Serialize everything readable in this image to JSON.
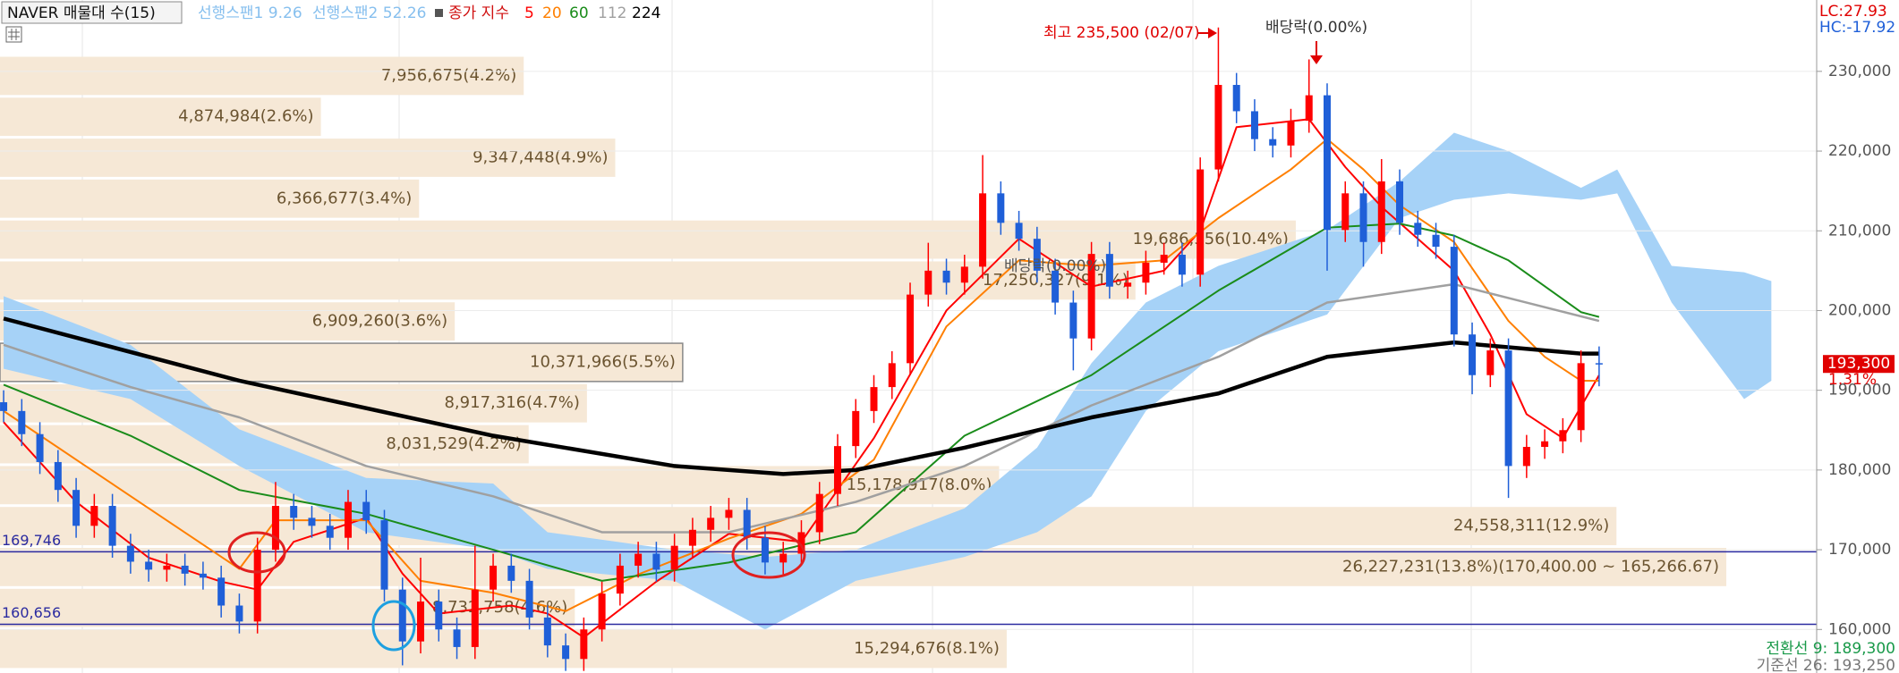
{
  "chart_data": {
    "type": "candlestick",
    "title": "NAVER 매물대 수(15)",
    "span1_label": "선행스팬1 9.26",
    "span2_label": "선행스팬2 52.26",
    "ma_label": "종가 지수",
    "xlim": [
      -0.2,
      100
    ],
    "ylim": [
      154540,
      238950
    ],
    "yticks": [
      {
        "value": 160000,
        "label": "160,000"
      },
      {
        "value": 170000,
        "label": "170,000"
      },
      {
        "value": 180000,
        "label": "180,000"
      },
      {
        "value": 190000,
        "label": "190,000"
      },
      {
        "value": 200000,
        "label": "200,000"
      },
      {
        "value": 210000,
        "label": "210,000"
      },
      {
        "value": 220000,
        "label": "220,000"
      },
      {
        "value": 230000,
        "label": "230,000"
      }
    ],
    "grid": true,
    "up_color": "#ff0000",
    "down_color": "#1f5fd8",
    "open": [
      188500,
      187400,
      184500,
      181000,
      177500,
      173000,
      175500,
      170500,
      168500,
      167500,
      168000,
      167000,
      166500,
      163000,
      161000,
      170000,
      175500,
      174000,
      173000,
      171500,
      176000,
      173700,
      165000,
      158500,
      163500,
      160000,
      157800,
      165000,
      168000,
      166100,
      161500,
      158000,
      156300,
      160000,
      164500,
      168000,
      169500,
      167500,
      170500,
      172500,
      174000,
      175000,
      171500,
      168400,
      169500,
      172200,
      177000,
      183000,
      187400,
      190400,
      193400,
      202000,
      205000,
      203500,
      205500,
      214700,
      211000,
      209000,
      205000,
      201000,
      196500,
      207100,
      203000,
      203500,
      206000,
      207000,
      204500,
      217700,
      228300,
      225000,
      221500,
      220700,
      223800,
      227000,
      210100,
      214700,
      208600,
      216200,
      211000,
      209500,
      208000,
      197000,
      191900,
      195000,
      180500,
      182900,
      183600,
      185000,
      193400
    ],
    "close": [
      187400,
      184500,
      181000,
      177500,
      173000,
      175500,
      170500,
      168500,
      167500,
      168000,
      167000,
      166500,
      163000,
      161000,
      170000,
      175500,
      174000,
      173000,
      171500,
      176000,
      173700,
      165000,
      158500,
      163500,
      160000,
      157800,
      165000,
      168000,
      166100,
      161500,
      158000,
      156300,
      160000,
      164500,
      168000,
      169500,
      167500,
      170500,
      172500,
      174000,
      175000,
      171500,
      168400,
      169500,
      172200,
      177000,
      183000,
      187400,
      190400,
      193400,
      202000,
      205000,
      203500,
      205500,
      214700,
      211000,
      209000,
      205000,
      201000,
      196500,
      207100,
      203000,
      203500,
      206000,
      207000,
      204500,
      217700,
      228300,
      225000,
      221500,
      220700,
      223800,
      227000,
      210100,
      214700,
      208600,
      216200,
      211000,
      209500,
      208000,
      197000,
      191900,
      195000,
      180500,
      182900,
      183600,
      185000,
      193400,
      193300
    ],
    "high": [
      190000,
      188900,
      186000,
      182500,
      179000,
      177000,
      177000,
      172000,
      170000,
      169500,
      169500,
      168500,
      168000,
      164500,
      171500,
      178500,
      177000,
      175500,
      174500,
      177500,
      177500,
      175000,
      166500,
      169000,
      165000,
      161500,
      170500,
      169500,
      169500,
      167600,
      163000,
      159500,
      161500,
      166000,
      169500,
      171000,
      171000,
      172000,
      174000,
      175500,
      176500,
      176500,
      173000,
      171000,
      173700,
      178500,
      184500,
      188900,
      191900,
      194900,
      203500,
      208500,
      206500,
      207000,
      219500,
      216200,
      212500,
      210500,
      206500,
      202500,
      208600,
      208600,
      205000,
      207500,
      208500,
      208500,
      219200,
      235500,
      229800,
      226500,
      223000,
      225300,
      231500,
      228500,
      216200,
      216200,
      219000,
      217700,
      212500,
      211000,
      209500,
      198500,
      196500,
      196500,
      184400,
      185100,
      186500,
      195000,
      195500
    ],
    "low": [
      186000,
      183000,
      179500,
      176000,
      171500,
      171500,
      169000,
      167000,
      166000,
      166000,
      165500,
      165000,
      161500,
      159500,
      159500,
      168500,
      172500,
      171500,
      170000,
      170000,
      172000,
      163500,
      155500,
      157000,
      158500,
      156300,
      156300,
      163500,
      164600,
      160000,
      156500,
      154800,
      154800,
      158500,
      163000,
      166500,
      166000,
      166000,
      169000,
      171000,
      172500,
      170000,
      166900,
      166900,
      168000,
      170700,
      175500,
      181500,
      185900,
      188900,
      191900,
      200500,
      202000,
      202000,
      204000,
      209500,
      207500,
      203500,
      199500,
      192500,
      195000,
      201500,
      201500,
      202000,
      204500,
      203000,
      203000,
      216200,
      223500,
      220000,
      219200,
      219200,
      222300,
      205000,
      208600,
      205500,
      207100,
      209500,
      208000,
      206500,
      195500,
      189500,
      190400,
      176500,
      179000,
      181400,
      182100,
      183500,
      190500
    ],
    "ma_series": [
      {
        "name": "5",
        "color": "#ff0000",
        "width": 2,
        "x": [
          0,
          4,
          8,
          12,
          14,
          16,
          20,
          22,
          24,
          28,
          30,
          32,
          36,
          40,
          44,
          48,
          52,
          56,
          60,
          64,
          66,
          68,
          72,
          74,
          76,
          80,
          82,
          84,
          86,
          88
        ],
        "values": [
          186000,
          176000,
          169000,
          166000,
          165000,
          171000,
          174000,
          167000,
          162000,
          163000,
          162000,
          159000,
          166000,
          172000,
          171000,
          184000,
          200000,
          209000,
          203000,
          205000,
          210000,
          223000,
          224000,
          218000,
          213000,
          205000,
          197000,
          187000,
          184000,
          191900
        ]
      },
      {
        "name": "20",
        "color": "#ff7f00",
        "width": 2,
        "x": [
          0,
          4,
          8,
          13,
          15,
          20,
          23,
          27,
          31,
          35,
          40,
          44,
          48,
          52,
          56,
          60,
          64,
          67,
          71,
          73,
          75,
          77,
          80,
          83,
          85,
          87,
          88
        ],
        "values": [
          187400,
          181300,
          175200,
          167600,
          173700,
          173700,
          166100,
          164600,
          162300,
          166900,
          171400,
          174500,
          181300,
          198000,
          206300,
          205600,
          206300,
          211600,
          217700,
          221500,
          217700,
          213200,
          208600,
          198700,
          194200,
          191200,
          191200
        ]
      },
      {
        "name": "60",
        "color": "#1a8c1a",
        "width": 2,
        "x": [
          0,
          7,
          13,
          20,
          27,
          33,
          40,
          47,
          53,
          60,
          67,
          73,
          77,
          80,
          83,
          87,
          88
        ],
        "values": [
          190700,
          184300,
          177500,
          174500,
          170000,
          166100,
          168400,
          172200,
          184300,
          191900,
          202500,
          210400,
          210900,
          209400,
          206300,
          199800,
          199200
        ]
      },
      {
        "name": "112",
        "color": "#a0a0a0",
        "width": 2.5,
        "x": [
          0,
          7,
          13,
          20,
          27,
          33,
          40,
          47,
          53,
          60,
          67,
          73,
          80,
          84,
          88
        ],
        "values": [
          195700,
          190400,
          186600,
          180500,
          176700,
          172200,
          172200,
          176000,
          180500,
          188100,
          194200,
          201000,
          203300,
          201000,
          198700
        ]
      },
      {
        "name": "224",
        "color": "#000000",
        "width": 4.5,
        "x": [
          0,
          13,
          27,
          37,
          43,
          47,
          53,
          60,
          67,
          73,
          80,
          87,
          88
        ],
        "values": [
          199000,
          191200,
          184300,
          180500,
          179500,
          180000,
          182800,
          186600,
          189600,
          194200,
          196000,
          194600,
          194600
        ]
      }
    ],
    "cloud": {
      "color": "#a6d2f7",
      "x": [
        0,
        7,
        13,
        20,
        27,
        30,
        37,
        42,
        47,
        53,
        57,
        60,
        63,
        67,
        73,
        77,
        80,
        83,
        87,
        89,
        92,
        96,
        97.5
      ],
      "span1": [
        201800,
        195700,
        185100,
        179000,
        178300,
        172200,
        170000,
        169100,
        170000,
        175200,
        182800,
        193400,
        201000,
        205600,
        210100,
        216200,
        222300,
        220000,
        215400,
        217700,
        205600,
        204800,
        203700
      ],
      "span2": [
        192700,
        188900,
        180500,
        172200,
        170000,
        167600,
        166100,
        160000,
        166100,
        169100,
        172200,
        176700,
        187400,
        194900,
        199500,
        211600,
        213900,
        214700,
        213900,
        214700,
        201000,
        188900,
        191200
      ]
    },
    "profile": {
      "color": "#f6e8d6",
      "xlim": [
        0,
        27600000
      ],
      "edges": [
        232000,
        226866.67,
        221733.33,
        216600,
        211466.67,
        206333.33,
        201200,
        196066.67,
        190933.33,
        185800,
        180666.67,
        175533.33,
        170400,
        165266.67,
        160133.33,
        155000
      ],
      "volumes": [
        7956675,
        4874984,
        9347448,
        6366677,
        19686356,
        17250327,
        6909260,
        10371966,
        8917316,
        8031529,
        15178917,
        24558311,
        26227231,
        8732758,
        15294676
      ],
      "labels": [
        "7,956,675(4.2%)",
        "4,874,984(2.6%)",
        "9,347,448(4.9%)",
        "6,366,677(3.4%)",
        "19,686,356(10.4%)",
        "17,250,327(9.1%)",
        "6,909,260(3.6%)",
        "10,371,966(5.5%)",
        "8,917,316(4.7%)",
        "8,031,529(4.2%)",
        "15,178,917(8.0%)",
        "24,558,311(12.9%)",
        "26,227,231(13.8%)(170,400.00 ~ 165,266.67)",
        "8,732,758(4.6%)",
        "15,294,676(8.1%)"
      ]
    },
    "hlines": [
      {
        "value": 169746,
        "label": "169,746"
      },
      {
        "value": 160656,
        "label": "160,656"
      }
    ],
    "last_price": {
      "value": 193300,
      "label": "193,300"
    },
    "change_label": "1.31%",
    "lc_label": "LC:27.93",
    "hc_label": "HC:-17.92",
    "conversion_label": "전환선 9: 189,300",
    "base_label": "기준선 26: 193,250",
    "annotations": [
      "최고 235,500 (02/07)",
      "배당락(0.00%)",
      "배당락(0.00%)"
    ]
  }
}
